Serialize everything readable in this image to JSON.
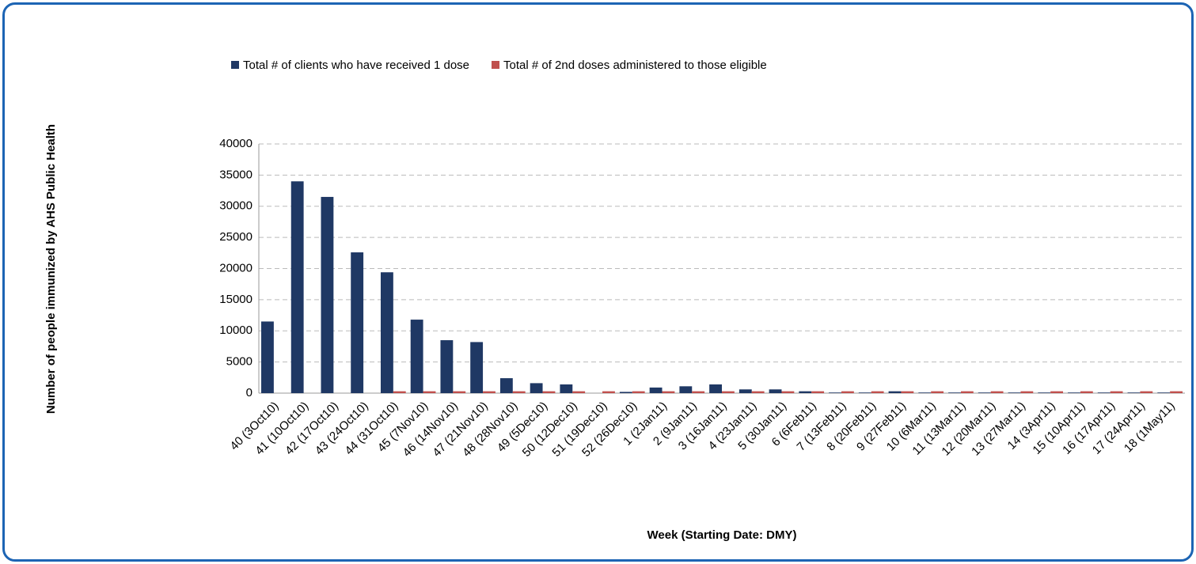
{
  "chart_data": {
    "type": "bar",
    "y_label": "Number of people immunized by AHS Public Health",
    "x_label": "Week (Starting Date: DMY)",
    "categories": [
      "40 (3Oct10)",
      "41 (10Oct10)",
      "42 (17Oct10)",
      "43 (24Oct10)",
      "44 (31Oct10)",
      "45 (7Nov10)",
      "46 (14Nov10)",
      "47 (21Nov10)",
      "48 (28Nov10)",
      "49 (5Dec10)",
      "50 (12Dec10)",
      "51 (19Dec10)",
      "52 (26Dec10)",
      "1 (2Jan11)",
      "2 (9Jan11)",
      "3 (16Jan11)",
      "4 (23Jan11)",
      "5 (30Jan11)",
      "6 (6Feb11)",
      "7 (13Feb11)",
      "8 (20Feb11)",
      "9 (27Feb11)",
      "10 (6Mar11)",
      "11 (13Mar11)",
      "12 (20Mar11)",
      "13 (27Mar11)",
      "14 (3Apr11)",
      "15 (10Apr11)",
      "16 (17Apr11)",
      "17 (24Apr11)",
      "18 (1May11)"
    ],
    "series": [
      {
        "name": "Total # of clients who have received 1 dose",
        "color": "#1f3864",
        "values": [
          11500,
          34000,
          31500,
          22600,
          19400,
          11800,
          8500,
          8200,
          2400,
          1600,
          1400,
          0,
          200,
          900,
          1100,
          1400,
          600,
          600,
          300,
          100,
          100,
          300,
          100,
          100,
          100,
          100,
          100,
          100,
          100,
          100,
          100
        ]
      },
      {
        "name": "Total # of 2nd doses administered to those eligible",
        "color": "#c0504d",
        "values": [
          0,
          0,
          0,
          0,
          300,
          300,
          300,
          300,
          300,
          300,
          300,
          300,
          300,
          300,
          300,
          300,
          300,
          300,
          300,
          300,
          300,
          300,
          300,
          300,
          300,
          300,
          300,
          300,
          300,
          300,
          300
        ]
      }
    ],
    "ylim": [
      0,
      40000
    ],
    "yticks": [
      0,
      5000,
      10000,
      15000,
      20000,
      25000,
      30000,
      35000,
      40000
    ],
    "grid": true,
    "legend": "top"
  }
}
